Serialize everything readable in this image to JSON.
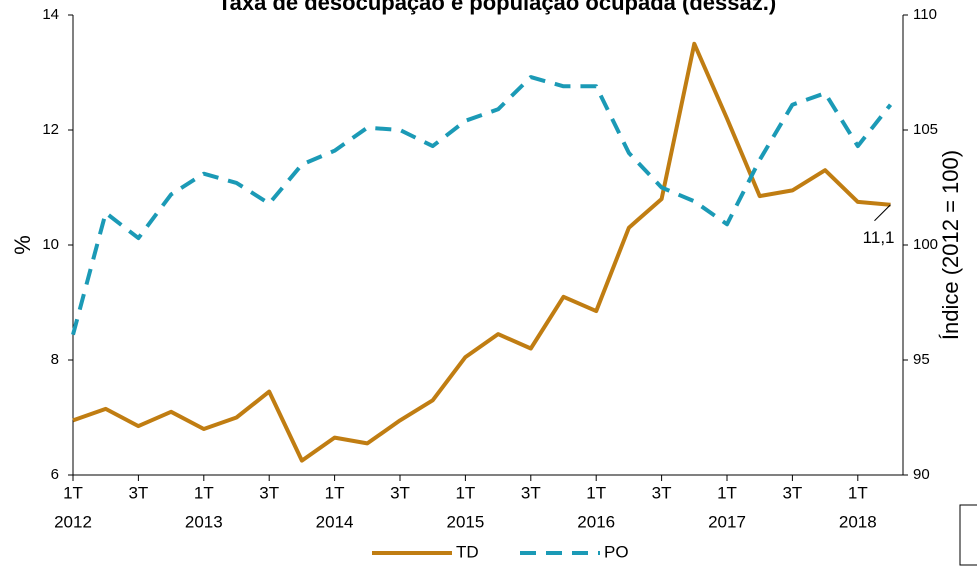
{
  "chart_data": {
    "type": "line",
    "title": "Taxa de desocupação e população ocupada (dessaz.)",
    "ylabel": "%",
    "y2label": "Índice (2012 = 100)",
    "categories": [
      "1T",
      null,
      "3T",
      null,
      "1T",
      null,
      "3T",
      null,
      "1T",
      null,
      "3T",
      null,
      "1T",
      null,
      "3T",
      null,
      "1T",
      null,
      "3T",
      null,
      "1T",
      null,
      "3T",
      null,
      "1T",
      null
    ],
    "year_labels": [
      "2012",
      null,
      null,
      null,
      "2013",
      null,
      null,
      null,
      "2014",
      null,
      null,
      null,
      "2015",
      null,
      null,
      null,
      "2016",
      null,
      null,
      null,
      "2017",
      null,
      null,
      null,
      "2018",
      null
    ],
    "series": [
      {
        "name": "TD",
        "color": "#c07d12",
        "values": [
          6.95,
          7.15,
          6.85,
          7.1,
          6.8,
          7.0,
          7.45,
          6.25,
          6.65,
          6.55,
          6.95,
          7.3,
          8.05,
          8.45,
          8.2,
          9.1,
          8.85,
          10.3,
          10.8,
          13.5,
          12.2,
          10.85,
          10.95,
          11.3,
          10.75,
          10.7
        ]
      },
      {
        "name": "PO",
        "color": "#1b9ab6",
        "axis": "y2",
        "dashed": true,
        "values": [
          96.1,
          101.4,
          100.3,
          102.2,
          103.1,
          102.7,
          101.8,
          103.5,
          104.1,
          105.1,
          105.0,
          104.3,
          105.4,
          105.9,
          107.3,
          106.9,
          106.9,
          104.0,
          102.5,
          101.9,
          100.9,
          103.7,
          106.1,
          106.6,
          104.3,
          106.1
        ]
      }
    ],
    "ylim": [
      6,
      14
    ],
    "yticks": [
      6,
      8,
      10,
      12,
      14
    ],
    "y2lim": [
      90,
      110
    ],
    "y2ticks": [
      90,
      95,
      100,
      105,
      110
    ],
    "annotation": "11,1",
    "legend": "bottom"
  }
}
